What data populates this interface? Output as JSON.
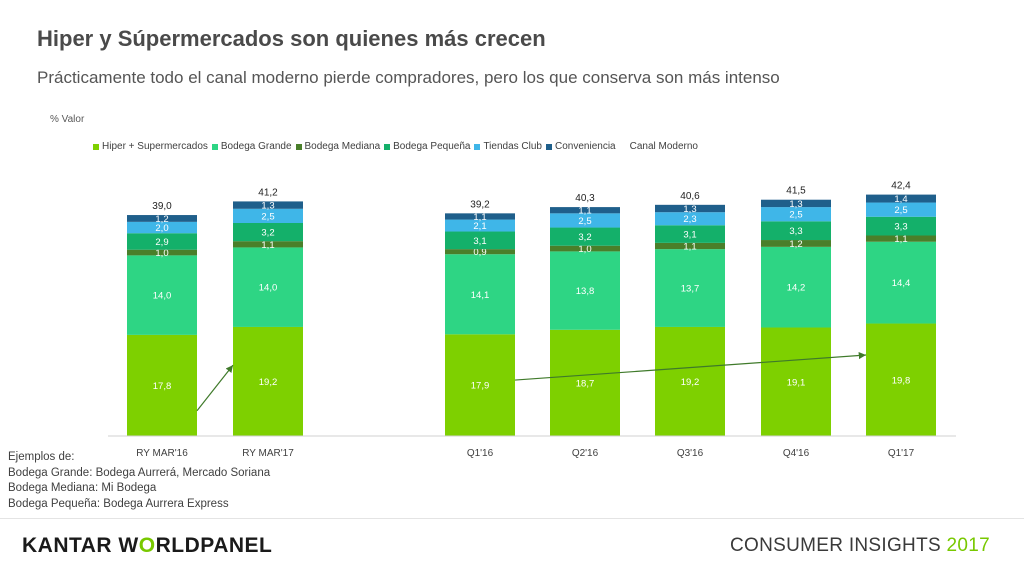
{
  "header": {
    "title": "Hiper y Súpermercados son quienes más crecen",
    "subtitle": "Prácticamente todo el canal moderno pierde compradores, pero los que conserva son más intenso"
  },
  "chart_data": {
    "type": "bar",
    "stacked": true,
    "ylabel": "% Valor",
    "legend_position": "top",
    "grid": false,
    "categories": [
      "RY MAR'16",
      "RY MAR'17",
      "Q1'16",
      "Q2'16",
      "Q3'16",
      "Q4'16",
      "Q1'17"
    ],
    "series": [
      {
        "name": "Hiper + Supermercados",
        "color": "#7ed000",
        "values": [
          17.8,
          19.2,
          17.9,
          18.7,
          19.2,
          19.1,
          19.8
        ],
        "labels": [
          "17,8",
          "19,2",
          "17,9",
          "18,7",
          "19,2",
          "19,1",
          "19,8"
        ]
      },
      {
        "name": "Bodega Grande",
        "color": "#2ed584",
        "values": [
          14.0,
          14.0,
          14.1,
          13.8,
          13.7,
          14.2,
          14.4
        ],
        "labels": [
          "14,0",
          "14,0",
          "14,1",
          "13,8",
          "13,7",
          "14,2",
          "14,4"
        ]
      },
      {
        "name": "Bodega Mediana",
        "color": "#4a7f2a",
        "values": [
          1.0,
          1.1,
          0.9,
          1.0,
          1.1,
          1.2,
          1.1
        ],
        "labels": [
          "1,0",
          "1,1",
          "0,9",
          "1,0",
          "1,1",
          "1,2",
          "1,1"
        ]
      },
      {
        "name": "Bodega Pequeña",
        "color": "#14b06a",
        "values": [
          2.9,
          3.2,
          3.1,
          3.2,
          3.1,
          3.3,
          3.3
        ],
        "labels": [
          "2,9",
          "3,2",
          "3,1",
          "3,2",
          "3,1",
          "3,3",
          "3,3"
        ]
      },
      {
        "name": "Tiendas Club",
        "color": "#3fb6e8",
        "values": [
          2.0,
          2.5,
          2.1,
          2.5,
          2.3,
          2.5,
          2.5
        ],
        "labels": [
          "2,0",
          "2,5",
          "2,1",
          "2,5",
          "2,3",
          "2,5",
          "2,5"
        ]
      },
      {
        "name": "Conveniencia",
        "color": "#1f5f8b",
        "values": [
          1.2,
          1.3,
          1.1,
          1.1,
          1.3,
          1.3,
          1.4
        ],
        "labels": [
          "1,2",
          "1,3",
          "1,1",
          "1,1",
          "1,3",
          "1,3",
          "1,4"
        ]
      }
    ],
    "totals": {
      "name": "Canal Moderno",
      "values": [
        39.0,
        41.2,
        39.2,
        40.3,
        40.6,
        41.5,
        42.4
      ],
      "labels": [
        "39,0",
        "41,2",
        "39,2",
        "40,3",
        "40,6",
        "41,5",
        "42,4"
      ]
    },
    "trend_arrows": [
      {
        "from": "RY MAR'16",
        "to": "RY MAR'17"
      },
      {
        "from": "Q1'16",
        "to": "Q1'17"
      }
    ]
  },
  "notes": {
    "lines": [
      "Ejemplos de:",
      "Bodega  Grande: Bodega Aurrerá, Mercado Soriana",
      "Bodega Mediana: Mi Bodega",
      "Bodega Pequeña: Bodega Aurrera Express"
    ]
  },
  "footer": {
    "brand_part1": "KANTAR W",
    "brand_accent": "O",
    "brand_part2": "RLDPANEL",
    "event_label": "CONSUMER INSIGHTS ",
    "event_year": "2017"
  }
}
